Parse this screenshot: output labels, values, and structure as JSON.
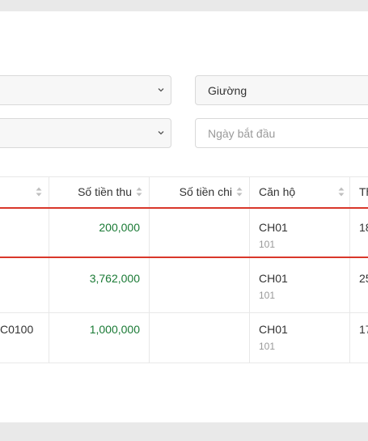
{
  "filters": {
    "bed": "Giường",
    "start_date": "Ngày bắt đầu"
  },
  "table": {
    "headers": [
      "Số tiền thu",
      "Số tiền chi",
      "Căn hộ",
      "Th"
    ],
    "rows": [
      {
        "income": "200,000",
        "apartment": "CH01",
        "unit": "101",
        "next": "18"
      },
      {
        "income": "3,762,000",
        "apartment": "CH01",
        "unit": "101",
        "next": "25"
      },
      {
        "code": "C0100",
        "income": "1,000,000",
        "apartment": "CH01",
        "unit": "101",
        "next": "17"
      }
    ]
  }
}
